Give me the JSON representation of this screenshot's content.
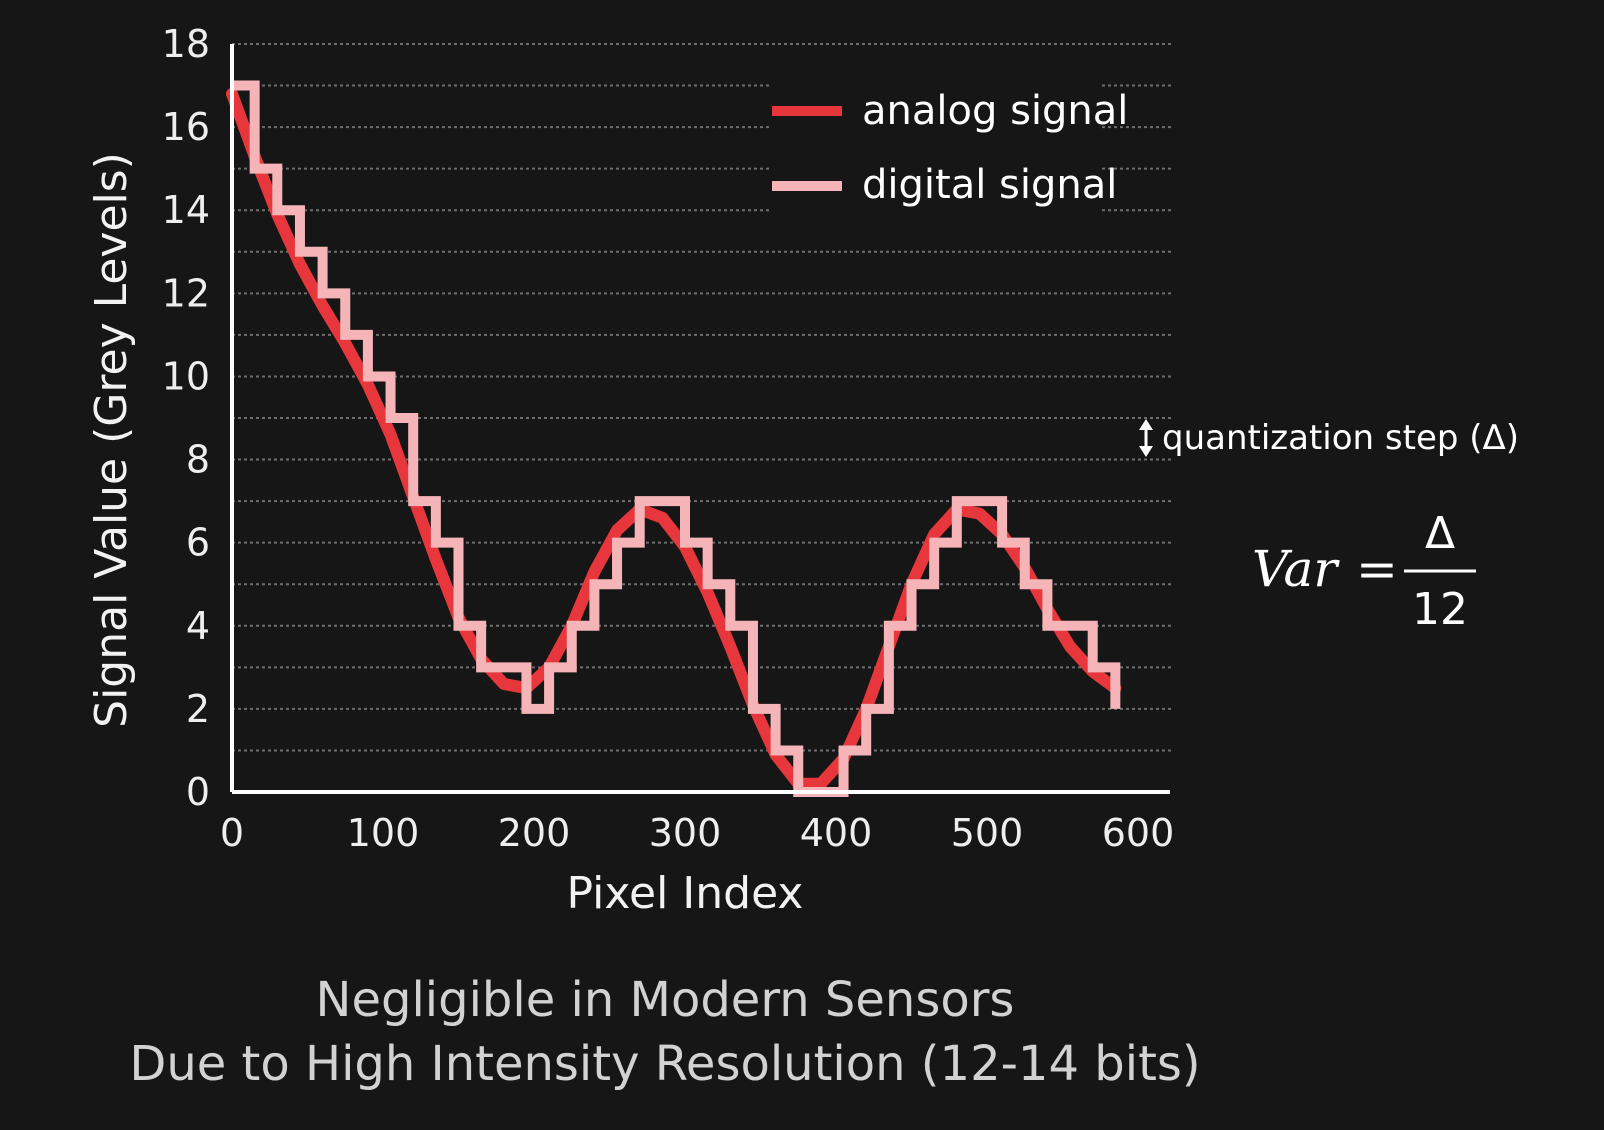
{
  "chart_data": {
    "type": "line",
    "xlabel": "Pixel Index",
    "ylabel": "Signal Value (Grey Levels)",
    "xlim": [
      0,
      600
    ],
    "ylim": [
      0,
      18
    ],
    "xticks": [
      "0",
      "100",
      "200",
      "300",
      "400",
      "500",
      "600"
    ],
    "yticks": [
      "0",
      "2",
      "4",
      "6",
      "8",
      "10",
      "12",
      "14",
      "16",
      "18"
    ],
    "grid": "horizontal dashed lines at each grey level",
    "legend_position": "top-right",
    "series": [
      {
        "name": "analog signal",
        "color": "#e8373c",
        "x": [
          0,
          15,
          30,
          45,
          60,
          75,
          90,
          105,
          120,
          135,
          150,
          165,
          180,
          195,
          210,
          225,
          240,
          255,
          270,
          285,
          300,
          315,
          330,
          345,
          360,
          375,
          390,
          405,
          420,
          435,
          450,
          465,
          480,
          495,
          510,
          525,
          540,
          555,
          570,
          585
        ],
        "y": [
          16.8,
          15.3,
          13.9,
          12.7,
          11.7,
          10.8,
          9.8,
          8.6,
          7.1,
          5.6,
          4.2,
          3.2,
          2.6,
          2.5,
          3.0,
          4.0,
          5.3,
          6.3,
          6.8,
          6.6,
          5.9,
          4.8,
          3.5,
          2.1,
          0.9,
          0.2,
          0.2,
          0.8,
          2.0,
          3.5,
          5.0,
          6.2,
          6.8,
          6.7,
          6.2,
          5.4,
          4.4,
          3.5,
          2.9,
          2.5
        ]
      },
      {
        "name": "digital signal",
        "color": "#f5b5b8",
        "x": [
          0,
          15,
          30,
          45,
          60,
          75,
          90,
          105,
          120,
          135,
          150,
          165,
          180,
          195,
          210,
          225,
          240,
          255,
          270,
          285,
          300,
          315,
          330,
          345,
          360,
          375,
          390,
          405,
          420,
          435,
          450,
          465,
          480,
          495,
          510,
          525,
          540,
          555,
          570,
          585
        ],
        "y": [
          17,
          15,
          14,
          13,
          12,
          11,
          10,
          9,
          7,
          6,
          4,
          3,
          3,
          2,
          3,
          4,
          5,
          6,
          7,
          7,
          6,
          5,
          4,
          2,
          1,
          0,
          0,
          1,
          2,
          4,
          5,
          6,
          7,
          7,
          6,
          5,
          4,
          4,
          3,
          2
        ]
      }
    ]
  },
  "annotation": {
    "label": "quantization step (Δ)",
    "icon": "double-arrow-vertical-icon"
  },
  "formula": {
    "lhs": "Var",
    "equals": "=",
    "numerator": "Δ",
    "denominator": "12"
  },
  "caption": {
    "line1": "Negligible in Modern Sensors",
    "line2": "Due to High Intensity Resolution (12-14 bits)"
  },
  "colors": {
    "background": "#161616",
    "axis": "#ffffff",
    "grid": "#6e6e6e"
  }
}
